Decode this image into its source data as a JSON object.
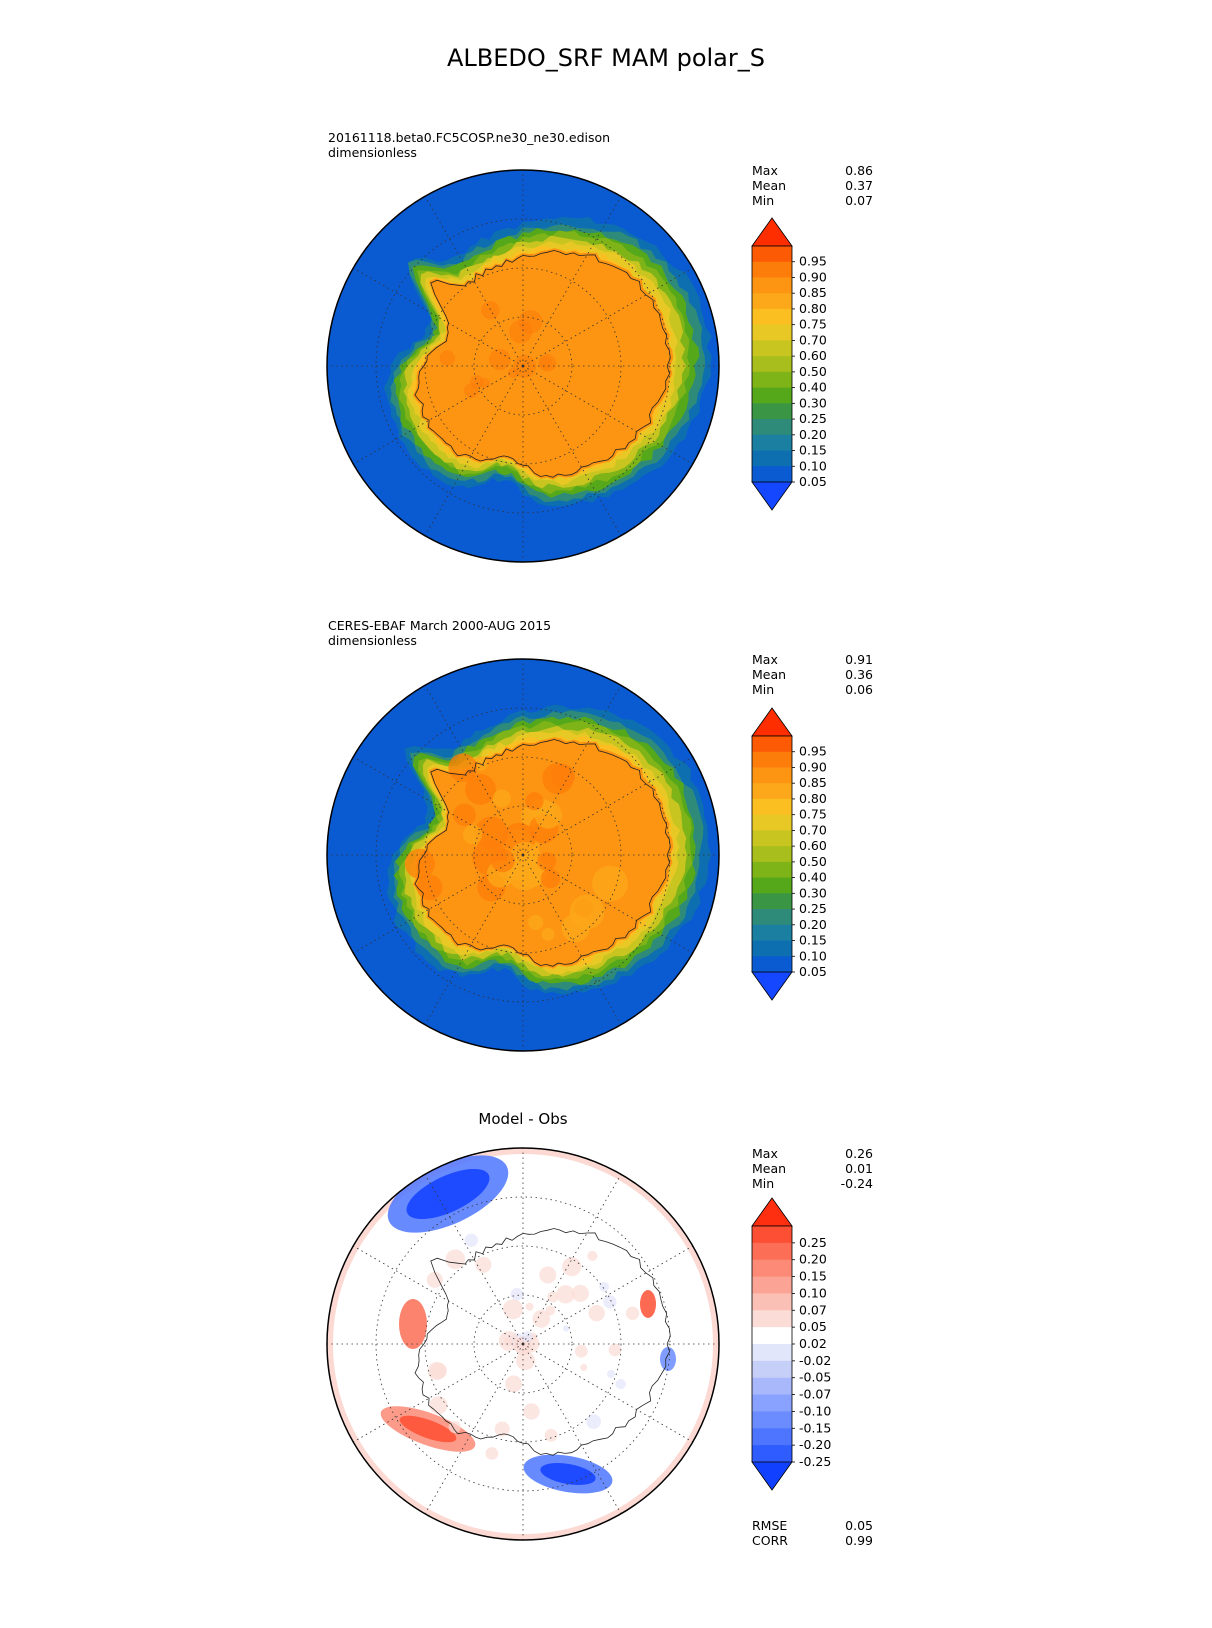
{
  "figure": {
    "title": "ALBEDO_SRF MAM polar_S"
  },
  "panels": [
    {
      "id": "model",
      "label_line1": "20161118.beta0.FC5COSP.ne30_ne30.edison",
      "label_line2": "dimensionless",
      "center_title": "",
      "stats": [
        {
          "key": "Max",
          "value": "0.86"
        },
        {
          "key": "Mean",
          "value": "0.37"
        },
        {
          "key": "Min",
          "value": "0.07"
        }
      ],
      "colorbar": {
        "ticks": [
          "0.95",
          "0.90",
          "0.85",
          "0.80",
          "0.75",
          "0.70",
          "0.60",
          "0.50",
          "0.40",
          "0.30",
          "0.25",
          "0.20",
          "0.15",
          "0.10",
          "0.05"
        ],
        "colors_bottom_to_top": [
          "#1447ff",
          "#0a5ad1",
          "#0d6fb0",
          "#1a7fa0",
          "#2e8b7a",
          "#3a9645",
          "#55a81a",
          "#7fb418",
          "#a8be1c",
          "#c8c520",
          "#e8c825",
          "#fbbf22",
          "#fca81a",
          "#fd9512",
          "#fd7d0a",
          "#fd5a05",
          "#fe2e00"
        ]
      },
      "map_style": "albedo_model"
    },
    {
      "id": "obs",
      "label_line1": "CERES-EBAF March 2000-AUG 2015",
      "label_line2": "dimensionless",
      "center_title": "",
      "stats": [
        {
          "key": "Max",
          "value": "0.91"
        },
        {
          "key": "Mean",
          "value": "0.36"
        },
        {
          "key": "Min",
          "value": "0.06"
        }
      ],
      "colorbar": {
        "ticks": [
          "0.95",
          "0.90",
          "0.85",
          "0.80",
          "0.75",
          "0.70",
          "0.60",
          "0.50",
          "0.40",
          "0.30",
          "0.25",
          "0.20",
          "0.15",
          "0.10",
          "0.05"
        ],
        "colors_bottom_to_top": [
          "#1447ff",
          "#0a5ad1",
          "#0d6fb0",
          "#1a7fa0",
          "#2e8b7a",
          "#3a9645",
          "#55a81a",
          "#7fb418",
          "#a8be1c",
          "#c8c520",
          "#e8c825",
          "#fbbf22",
          "#fca81a",
          "#fd9512",
          "#fd7d0a",
          "#fd5a05",
          "#fe2e00"
        ]
      },
      "map_style": "albedo_obs"
    },
    {
      "id": "diff",
      "label_line1": "",
      "label_line2": "",
      "center_title": "Model - Obs",
      "stats": [
        {
          "key": "Max",
          "value": "0.26"
        },
        {
          "key": "Mean",
          "value": "0.01"
        },
        {
          "key": "Min",
          "value": "-0.24"
        }
      ],
      "extra_stats": [
        {
          "key": "RMSE",
          "value": "0.05"
        },
        {
          "key": "CORR",
          "value": "0.99"
        }
      ],
      "colorbar": {
        "ticks": [
          "0.25",
          "0.20",
          "0.15",
          "0.10",
          "0.07",
          "0.05",
          "0.02",
          "-0.02",
          "-0.05",
          "-0.07",
          "-0.10",
          "-0.15",
          "-0.20",
          "-0.25"
        ],
        "colors_bottom_to_top": [
          "#1240ff",
          "#2f5cff",
          "#4d75ff",
          "#6b8cff",
          "#8aa2ff",
          "#a8b8fb",
          "#c6cff8",
          "#e2e6fb",
          "#ffffff",
          "#fbdcd6",
          "#fbc0b5",
          "#fba394",
          "#fc8a76",
          "#fc6e56",
          "#fd4f33",
          "#fe2e10"
        ]
      },
      "map_style": "diff"
    }
  ]
}
